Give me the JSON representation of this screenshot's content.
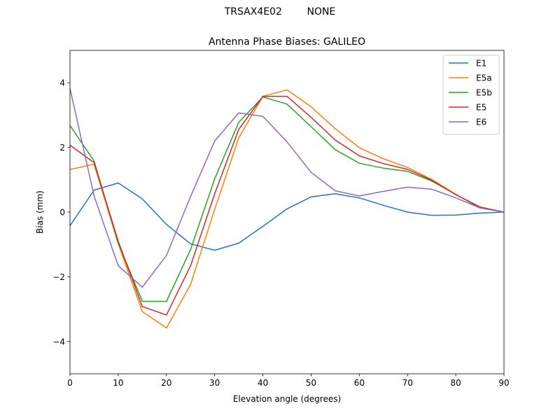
{
  "suptitle": "TRSAX4E02        NONE",
  "chart_data": {
    "type": "line",
    "title": "Antenna Phase Biases: GALILEO",
    "xlabel": "Elevation angle (degrees)",
    "ylabel": "Bias (mm)",
    "xlim": [
      0,
      90
    ],
    "ylim": [
      -5,
      5
    ],
    "xticks": [
      0,
      10,
      20,
      30,
      40,
      50,
      60,
      70,
      80,
      90
    ],
    "yticks": [
      -4,
      -2,
      0,
      2,
      4
    ],
    "ytick_labels": [
      "−4",
      "−2",
      "0",
      "2",
      "4"
    ],
    "grid": false,
    "legend_position": "top-right",
    "x": [
      0,
      5,
      10,
      15,
      20,
      25,
      30,
      35,
      40,
      45,
      50,
      55,
      60,
      65,
      70,
      75,
      80,
      85,
      90
    ],
    "series": [
      {
        "name": "E1",
        "color": "#1f77b4",
        "values": [
          -0.42,
          0.68,
          0.9,
          0.41,
          -0.38,
          -0.98,
          -1.18,
          -0.96,
          -0.44,
          0.1,
          0.47,
          0.57,
          0.44,
          0.21,
          0.0,
          -0.1,
          -0.09,
          -0.03,
          0.0
        ]
      },
      {
        "name": "E5a",
        "color": "#ff7f0e",
        "values": [
          1.32,
          1.48,
          -0.98,
          -3.08,
          -3.58,
          -2.24,
          0.09,
          2.3,
          3.58,
          3.78,
          3.26,
          2.58,
          1.99,
          1.65,
          1.38,
          1.01,
          0.55,
          0.15,
          0.0
        ]
      },
      {
        "name": "E5b",
        "color": "#2ca02c",
        "values": [
          2.68,
          1.58,
          -0.96,
          -2.76,
          -2.76,
          -1.16,
          1.03,
          2.78,
          3.56,
          3.34,
          2.64,
          1.93,
          1.51,
          1.36,
          1.26,
          0.96,
          0.55,
          0.13,
          0.0
        ]
      },
      {
        "name": "E5",
        "color": "#d62728",
        "values": [
          2.07,
          1.53,
          -0.9,
          -2.92,
          -3.18,
          -1.66,
          0.57,
          2.56,
          3.58,
          3.58,
          2.93,
          2.23,
          1.74,
          1.5,
          1.32,
          0.99,
          0.54,
          0.16,
          0.0
        ]
      },
      {
        "name": "E6",
        "color": "#9467bd",
        "values": [
          3.82,
          0.5,
          -1.66,
          -2.32,
          -1.34,
          0.48,
          2.2,
          3.07,
          2.96,
          2.17,
          1.23,
          0.66,
          0.5,
          0.64,
          0.77,
          0.71,
          0.44,
          0.13,
          0.0
        ]
      }
    ]
  }
}
